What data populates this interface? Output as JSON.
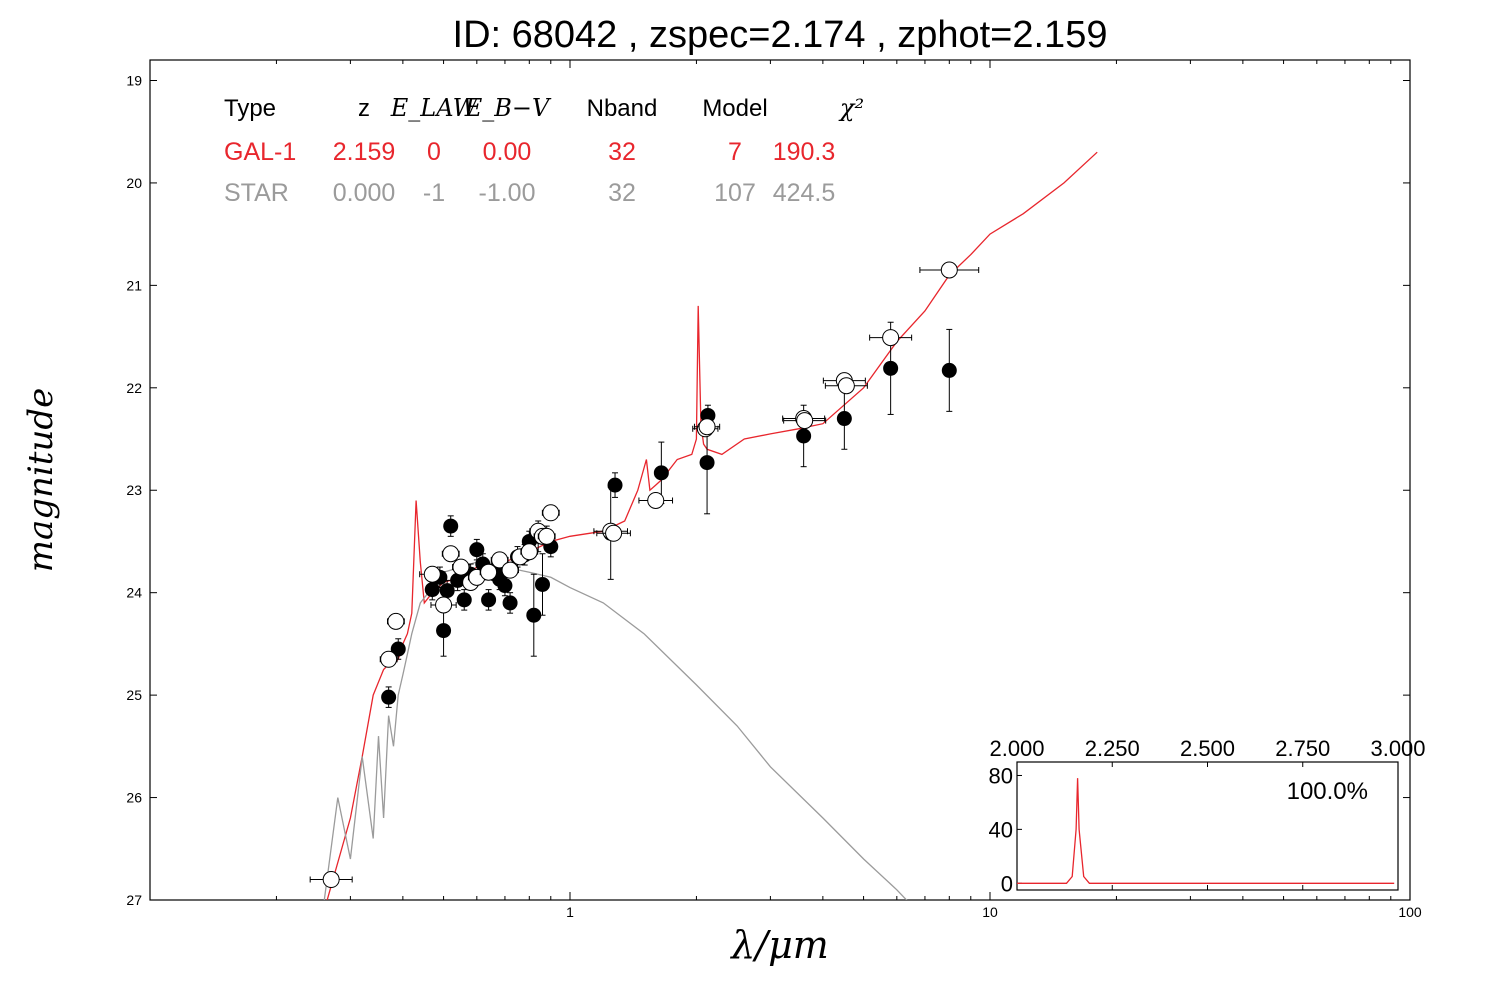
{
  "chart_data": {
    "type": "scatter",
    "title": "ID:  68042 , zspec=2.174 , zphot=2.159",
    "xlabel": "λ/μm",
    "ylabel": "magnitude",
    "xscale": "log",
    "xlim": [
      0.1,
      100
    ],
    "ylim": [
      27,
      18.8
    ],
    "y_inverted": true,
    "xtick_labels": [
      {
        "v": 1,
        "t": "1"
      },
      {
        "v": 10,
        "t": "10"
      },
      {
        "v": 100,
        "t": "100"
      }
    ],
    "ytick_labels": [
      19,
      20,
      21,
      22,
      23,
      24,
      25,
      26,
      27
    ],
    "colors": {
      "galaxy": "#e8262d",
      "star": "#9b9b9b",
      "axis": "#000000"
    },
    "fit_table": {
      "headers": [
        "Type",
        "z",
        "E_LAW",
        "E_B−V",
        "Nband",
        "Model",
        "χ²"
      ],
      "rows": [
        {
          "name": "galaxy",
          "cells": [
            "GAL-1",
            "2.159",
            "0",
            "0.00",
            "32",
            "7",
            "190.3"
          ]
        },
        {
          "name": "star",
          "cells": [
            "STAR",
            "0.000",
            "-1",
            "-1.00",
            "32",
            "107",
            "424.5"
          ]
        }
      ]
    },
    "series": [
      {
        "name": "GAL-1",
        "kind": "line",
        "color": "#e8262d",
        "x": [
          0.26,
          0.3,
          0.32,
          0.34,
          0.36,
          0.37,
          0.38,
          0.39,
          0.4,
          0.41,
          0.42,
          0.43,
          0.44,
          0.45,
          0.47,
          0.5,
          0.55,
          0.6,
          0.65,
          0.7,
          0.8,
          0.9,
          1.0,
          1.2,
          1.35,
          1.45,
          1.52,
          1.55,
          1.6,
          1.65,
          1.8,
          1.95,
          2.0,
          2.02,
          2.05,
          2.08,
          2.12,
          2.3,
          2.6,
          3.0,
          3.5,
          4.0,
          5.0,
          6.0,
          7.0,
          8.0,
          9.0,
          10.0,
          12.0,
          15.0,
          18.0
        ],
        "y": [
          27.1,
          26.2,
          25.6,
          25.0,
          24.75,
          24.7,
          24.7,
          24.65,
          24.5,
          24.4,
          24.2,
          23.1,
          23.7,
          24.1,
          24.0,
          23.9,
          23.85,
          23.75,
          23.75,
          23.7,
          23.6,
          23.5,
          23.45,
          23.4,
          23.3,
          23.0,
          22.7,
          23.0,
          22.95,
          22.9,
          22.7,
          22.65,
          22.5,
          21.2,
          22.35,
          22.55,
          22.6,
          22.65,
          22.5,
          22.45,
          22.4,
          22.35,
          22.0,
          21.55,
          21.25,
          20.9,
          20.7,
          20.5,
          20.3,
          20.0,
          19.7
        ]
      },
      {
        "name": "STAR",
        "kind": "line",
        "color": "#9b9b9b",
        "x": [
          0.26,
          0.28,
          0.3,
          0.32,
          0.34,
          0.35,
          0.36,
          0.37,
          0.38,
          0.39,
          0.4,
          0.41,
          0.42,
          0.44,
          0.46,
          0.5,
          0.55,
          0.6,
          0.7,
          0.8,
          0.9,
          1.0,
          1.2,
          1.5,
          2.0,
          2.5,
          3.0,
          4.0,
          5.0,
          6.0,
          6.5
        ],
        "y": [
          27.0,
          26.0,
          26.6,
          25.6,
          26.4,
          25.4,
          26.2,
          25.2,
          25.5,
          25.0,
          24.8,
          24.6,
          24.4,
          24.1,
          24.0,
          23.8,
          23.75,
          23.7,
          23.75,
          23.8,
          23.85,
          23.95,
          24.1,
          24.4,
          24.9,
          25.3,
          25.7,
          26.2,
          26.6,
          26.9,
          27.05
        ]
      },
      {
        "name": "observed",
        "kind": "points",
        "marker": "filled",
        "x": [
          0.37,
          0.39,
          0.47,
          0.49,
          0.5,
          0.51,
          0.52,
          0.54,
          0.56,
          0.58,
          0.6,
          0.62,
          0.64,
          0.66,
          0.68,
          0.7,
          0.72,
          0.75,
          0.78,
          0.8,
          0.82,
          0.84,
          0.86,
          0.88,
          0.9,
          1.25,
          1.28,
          1.65,
          2.12,
          2.13,
          3.6,
          4.5,
          5.8,
          8.0
        ],
        "y": [
          25.02,
          24.55,
          23.97,
          23.85,
          24.37,
          23.98,
          23.35,
          23.88,
          24.07,
          23.82,
          23.58,
          23.72,
          24.07,
          23.78,
          23.87,
          23.93,
          24.1,
          23.65,
          23.63,
          23.5,
          24.22,
          23.45,
          23.92,
          23.45,
          23.55,
          23.42,
          22.95,
          22.83,
          22.73,
          22.27,
          22.47,
          22.3,
          21.81,
          21.83
        ],
        "yerr": [
          0.1,
          0.1,
          0.1,
          0.1,
          0.25,
          0.1,
          0.1,
          0.1,
          0.1,
          0.1,
          0.1,
          0.1,
          0.1,
          0.1,
          0.1,
          0.1,
          0.1,
          0.1,
          0.1,
          0.1,
          0.4,
          0.15,
          0.3,
          0.1,
          0.1,
          0.45,
          0.12,
          0.3,
          0.5,
          0.1,
          0.3,
          0.3,
          0.45,
          0.4
        ]
      },
      {
        "name": "model",
        "kind": "points",
        "marker": "open",
        "x": [
          0.27,
          0.37,
          0.385,
          0.47,
          0.5,
          0.52,
          0.55,
          0.58,
          0.6,
          0.64,
          0.68,
          0.72,
          0.76,
          0.8,
          0.84,
          0.86,
          0.88,
          0.9,
          1.25,
          1.27,
          1.6,
          2.1,
          2.12,
          3.6,
          3.62,
          4.5,
          4.55,
          5.8,
          8.0
        ],
        "y": [
          26.8,
          24.65,
          24.28,
          23.82,
          24.12,
          23.62,
          23.75,
          23.9,
          23.85,
          23.8,
          23.68,
          23.78,
          23.65,
          23.6,
          23.4,
          23.45,
          23.45,
          23.22,
          23.4,
          23.42,
          23.1,
          22.4,
          22.38,
          22.3,
          22.32,
          21.93,
          21.98,
          21.51,
          20.85
        ],
        "xerr_log": [
          0.05,
          0.02,
          0.02,
          0.03,
          0.03,
          0.02,
          0.02,
          0.02,
          0.02,
          0.02,
          0.02,
          0.02,
          0.02,
          0.02,
          0.02,
          0.02,
          0.02,
          0.02,
          0.04,
          0.04,
          0.04,
          0.03,
          0.03,
          0.05,
          0.05,
          0.05,
          0.05,
          0.05,
          0.07
        ]
      }
    ],
    "inset": {
      "xlim": [
        2.0,
        3.0
      ],
      "ylim": [
        -5,
        90
      ],
      "xtick_labels": [
        "2.000",
        "2.250",
        "2.500",
        "2.750",
        "3.000"
      ],
      "ytick_labels": [
        0,
        40,
        80
      ],
      "annotation": "100.0%",
      "pdz_x": [
        2.0,
        2.13,
        2.145,
        2.155,
        2.159,
        2.163,
        2.175,
        2.19,
        2.99
      ],
      "pdz_y": [
        0,
        0,
        5,
        40,
        78,
        40,
        5,
        0,
        0
      ]
    }
  }
}
